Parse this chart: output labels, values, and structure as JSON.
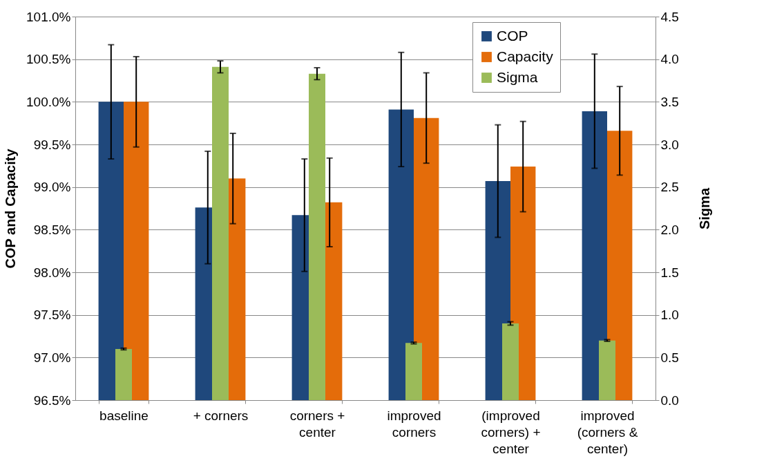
{
  "chart_data": {
    "type": "bar",
    "ylabel": "COP and Capacity",
    "y2label": "Sigma",
    "categories": [
      "baseline",
      "+ corners",
      "corners +\ncenter",
      "improved\ncorners",
      "(improved\ncorners) +\ncenter",
      "improved\n(corners &\ncenter)"
    ],
    "series": [
      {
        "name": "COP",
        "color": "#1f487c",
        "values": [
          100.0,
          98.76,
          98.67,
          99.91,
          99.07,
          99.89
        ],
        "errors": [
          0.67,
          0.66,
          0.66,
          0.67,
          0.66,
          0.67
        ]
      },
      {
        "name": "Capacity",
        "color": "#e46c0a",
        "values": [
          100.0,
          99.1,
          98.82,
          99.81,
          99.24,
          99.66
        ],
        "errors": [
          0.53,
          0.53,
          0.52,
          0.53,
          0.53,
          0.52
        ]
      },
      {
        "name": "Sigma",
        "color": "#9bbb59",
        "axis": "y2",
        "values": [
          0.6,
          3.91,
          3.83,
          0.67,
          0.9,
          0.7
        ],
        "errors": [
          0.01,
          0.07,
          0.07,
          0.01,
          0.02,
          0.01
        ]
      }
    ],
    "ylim": [
      96.5,
      101.0
    ],
    "yticks": [
      {
        "value": 96.5,
        "label": "96.5%"
      },
      {
        "value": 97.0,
        "label": "97.0%"
      },
      {
        "value": 97.5,
        "label": "97.5%"
      },
      {
        "value": 98.0,
        "label": "98.0%"
      },
      {
        "value": 98.5,
        "label": "98.5%"
      },
      {
        "value": 99.0,
        "label": "99.0%"
      },
      {
        "value": 99.5,
        "label": "99.5%"
      },
      {
        "value": 100.0,
        "label": "100.0%"
      },
      {
        "value": 100.5,
        "label": "100.5%"
      },
      {
        "value": 101.0,
        "label": "101.0%"
      }
    ],
    "y2lim": [
      0,
      4.5
    ],
    "y2ticks": [
      {
        "value": 0,
        "label": "0.0"
      },
      {
        "value": 0.5,
        "label": "0.5"
      },
      {
        "value": 1,
        "label": "1.0"
      },
      {
        "value": 1.5,
        "label": "1.5"
      },
      {
        "value": 2,
        "label": "2.0"
      },
      {
        "value": 2.5,
        "label": "2.5"
      },
      {
        "value": 3,
        "label": "3.0"
      },
      {
        "value": 3.5,
        "label": "3.5"
      },
      {
        "value": 4,
        "label": "4.0"
      },
      {
        "value": 4.5,
        "label": "4.5"
      }
    ],
    "grid": "y",
    "legend": "top right"
  }
}
